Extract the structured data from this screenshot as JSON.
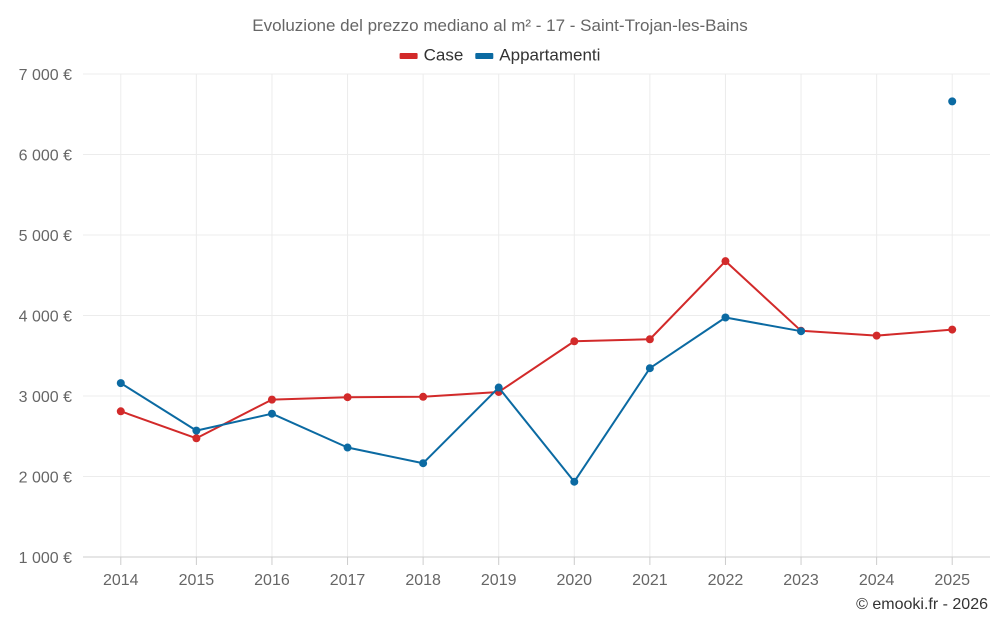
{
  "chart_data": {
    "type": "line",
    "title": "Evoluzione del prezzo mediano al m² - 17 - Saint-Trojan-les-Bains",
    "categories": [
      "2014",
      "2015",
      "2016",
      "2017",
      "2018",
      "2019",
      "2020",
      "2021",
      "2022",
      "2023",
      "2024",
      "2025"
    ],
    "ylim": [
      1000,
      7000
    ],
    "yticks": [
      1000,
      2000,
      3000,
      4000,
      5000,
      6000,
      7000
    ],
    "ytick_labels": [
      "1 000 €",
      "2 000 €",
      "3 000 €",
      "4 000 €",
      "5 000 €",
      "6 000 €",
      "7 000 €"
    ],
    "grid": true,
    "legend_position": "top-center",
    "series": [
      {
        "name": "Case",
        "color": "#d22a2a",
        "values": [
          2810,
          2475,
          2955,
          2985,
          2990,
          3050,
          3680,
          3705,
          4675,
          3810,
          3750,
          3825
        ]
      },
      {
        "name": "Appartamenti",
        "color": "#0b6aa2",
        "values": [
          3160,
          2570,
          2780,
          2360,
          2165,
          3105,
          1935,
          3345,
          3975,
          3805,
          null,
          6660
        ]
      }
    ],
    "credit": "© emooki.fr - 2026"
  }
}
